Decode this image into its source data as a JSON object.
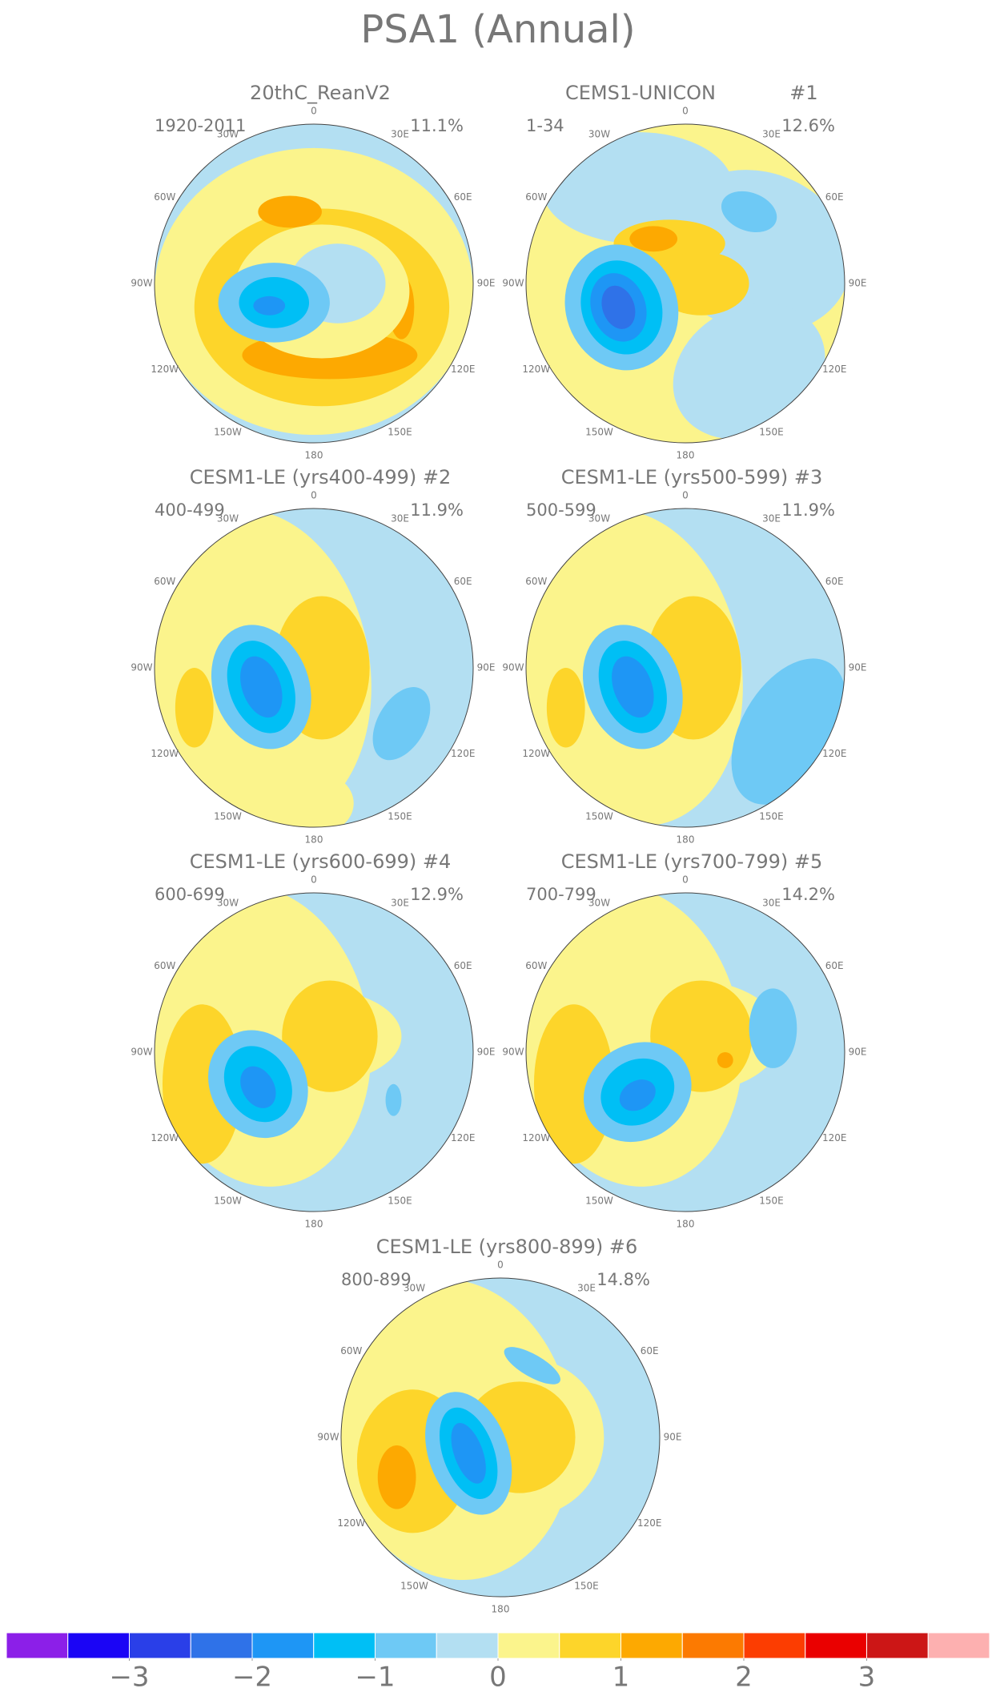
{
  "title": "PSA1 (Annual)",
  "lon_labels": [
    "0",
    "30E",
    "60E",
    "90E",
    "120E",
    "150E",
    "180",
    "150W",
    "120W",
    "90W",
    "60W",
    "30W"
  ],
  "panels": [
    {
      "title": "20thC_ReanV2",
      "period": "1920-2011",
      "variance": "11.1%"
    },
    {
      "title": "CEMS1-UNICON",
      "number": "#1",
      "period": "1-34",
      "variance": "12.6%"
    },
    {
      "title": "CESM1-LE (yrs400-499) #2",
      "period": "400-499",
      "variance": "11.9%"
    },
    {
      "title": "CESM1-LE (yrs500-599) #3",
      "period": "500-599",
      "variance": "11.9%"
    },
    {
      "title": "CESM1-LE (yrs600-699) #4",
      "period": "600-699",
      "variance": "12.9%"
    },
    {
      "title": "CESM1-LE (yrs700-799) #5",
      "period": "700-799",
      "variance": "14.2%"
    },
    {
      "title": "CESM1-LE (yrs800-899) #6",
      "period": "800-899",
      "variance": "14.8%"
    }
  ],
  "colorbar": {
    "lim": [
      -4,
      4
    ],
    "colors": [
      "#8c1fe8",
      "#1b05f5",
      "#2a3fe8",
      "#2f72e8",
      "#1e96f5",
      "#00bff5",
      "#6ec9f5",
      "#b3dff2",
      "#fbf48c",
      "#fdd52a",
      "#fda901",
      "#fc7a01",
      "#fc3d01",
      "#ea0000",
      "#cc1616",
      "#fdb0b0"
    ],
    "ticks": [
      {
        "value": -3,
        "label": "−3"
      },
      {
        "value": -2,
        "label": "−2"
      },
      {
        "value": -1,
        "label": "−1"
      },
      0,
      1,
      2,
      3
    ]
  }
}
